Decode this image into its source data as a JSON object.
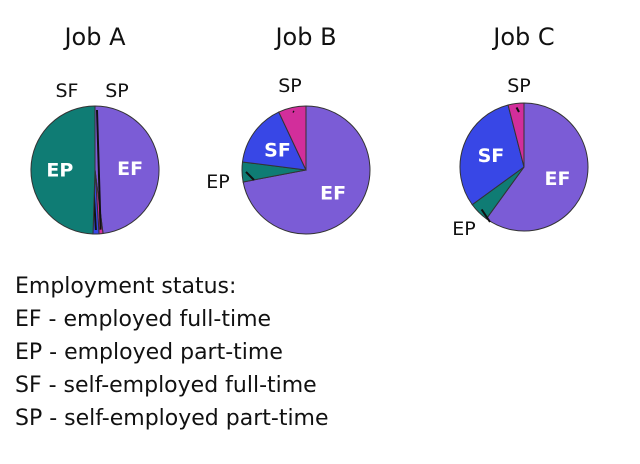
{
  "colors": {
    "EF": "#7B5CD6",
    "EP": "#0F7C74",
    "SF": "#3847E6",
    "SP": "#D22E9B",
    "stroke": "#333333",
    "label_text": "#ffffff",
    "text": "#111111"
  },
  "chart_data": [
    {
      "type": "pie",
      "title": "Job A",
      "labels": [
        "EF",
        "SP",
        "SF",
        "EP"
      ],
      "values": [
        48,
        1,
        1.5,
        49.5
      ],
      "start_angle_deg": 0,
      "direction": "clockwise",
      "inside_labels": [
        "EF",
        "EP"
      ],
      "outside_labels": [
        "SF",
        "SP"
      ]
    },
    {
      "type": "pie",
      "title": "Job B",
      "labels": [
        "EF",
        "EP",
        "SF",
        "SP"
      ],
      "values": [
        72,
        5,
        16,
        7
      ],
      "start_angle_deg": 0,
      "direction": "clockwise",
      "inside_labels": [
        "EF",
        "SF"
      ],
      "outside_labels": [
        "EP",
        "SP"
      ]
    },
    {
      "type": "pie",
      "title": "Job C",
      "labels": [
        "EF",
        "EP",
        "SF",
        "SP"
      ],
      "values": [
        60,
        5,
        31,
        4
      ],
      "start_angle_deg": 0,
      "direction": "clockwise",
      "inside_labels": [
        "EF",
        "SF"
      ],
      "outside_labels": [
        "EP",
        "SP"
      ]
    }
  ],
  "legend": {
    "heading": "Employment status:",
    "items": [
      "EF - employed full-time",
      "EP - employed part-time",
      "SF - self-employed full-time",
      "SP - self-employed part-time"
    ]
  }
}
